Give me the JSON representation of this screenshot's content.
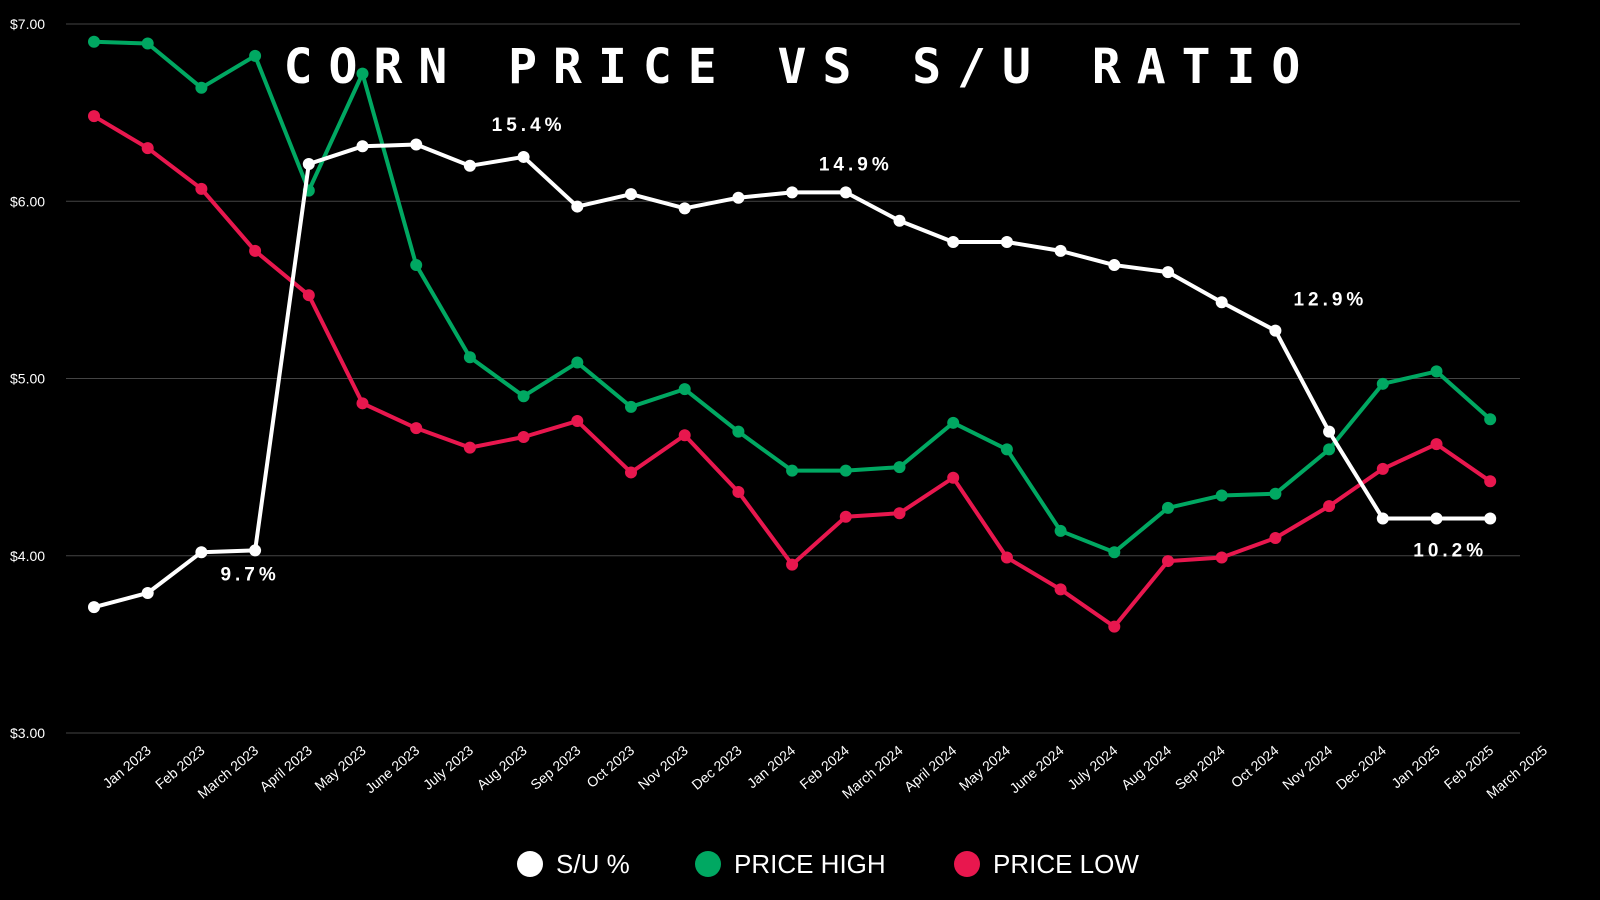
{
  "chart_data": {
    "type": "line",
    "title": "CORN PRICE VS S/U RATIO",
    "xlabel": "",
    "ylabel": "",
    "ylim": [
      3,
      7
    ],
    "yticks": [
      {
        "value": 3,
        "label": "$3.00"
      },
      {
        "value": 4,
        "label": "$4.00"
      },
      {
        "value": 5,
        "label": "$5.00"
      },
      {
        "value": 6,
        "label": "$6.00"
      },
      {
        "value": 7,
        "label": "$7.00"
      }
    ],
    "grid": true,
    "legend_position": "bottom",
    "categories": [
      "Jan 2023",
      "Feb 2023",
      "March 2023",
      "April 2023",
      "May 2023",
      "June 2023",
      "July 2023",
      "Aug 2023",
      "Sep 2023",
      "Oct 2023",
      "Nov 2023",
      "Dec 2023",
      "Jan 2024",
      "Feb 2024",
      "March 2024",
      "April 2024",
      "May 2024",
      "June 2024",
      "July 2024",
      "Aug 2024",
      "Sep 2024",
      "Oct 2024",
      "Nov 2024",
      "Dec 2024",
      "Jan 2025",
      "Feb 2025",
      "March 2025"
    ],
    "series": [
      {
        "name": "S/U %",
        "color": "#ffffff",
        "values": [
          3.71,
          3.79,
          4.02,
          4.03,
          6.21,
          6.31,
          6.32,
          6.2,
          6.25,
          5.97,
          6.04,
          5.96,
          6.02,
          6.05,
          6.05,
          5.89,
          5.77,
          5.77,
          5.72,
          5.64,
          5.6,
          5.43,
          5.27,
          4.7,
          4.21,
          4.21,
          4.21
        ]
      },
      {
        "name": "PRICE HIGH",
        "color": "#00a862",
        "values": [
          6.9,
          6.89,
          6.64,
          6.82,
          6.06,
          6.72,
          5.64,
          5.12,
          4.9,
          5.09,
          4.84,
          4.94,
          4.7,
          4.48,
          4.48,
          4.5,
          4.75,
          4.6,
          4.14,
          4.02,
          4.27,
          4.34,
          4.35,
          4.6,
          4.97,
          5.04,
          4.77
        ]
      },
      {
        "name": "PRICE LOW",
        "color": "#e8174e",
        "values": [
          6.48,
          6.3,
          6.07,
          5.72,
          5.47,
          4.86,
          4.72,
          4.61,
          4.67,
          4.76,
          4.47,
          4.68,
          4.36,
          3.95,
          4.22,
          4.24,
          4.44,
          3.99,
          3.81,
          3.6,
          3.97,
          3.99,
          4.1,
          4.28,
          4.49,
          4.63,
          4.42
        ]
      }
    ],
    "annotations": [
      {
        "text": "9.7%",
        "series": "S/U %",
        "index": 3
      },
      {
        "text": "15.4%",
        "series": "S/U %",
        "index": 8
      },
      {
        "text": "14.9%",
        "series": "S/U %",
        "index": 14
      },
      {
        "text": "12.9%",
        "series": "S/U %",
        "index": 22
      },
      {
        "text": "10.2%",
        "series": "S/U %",
        "index": 26
      }
    ]
  }
}
